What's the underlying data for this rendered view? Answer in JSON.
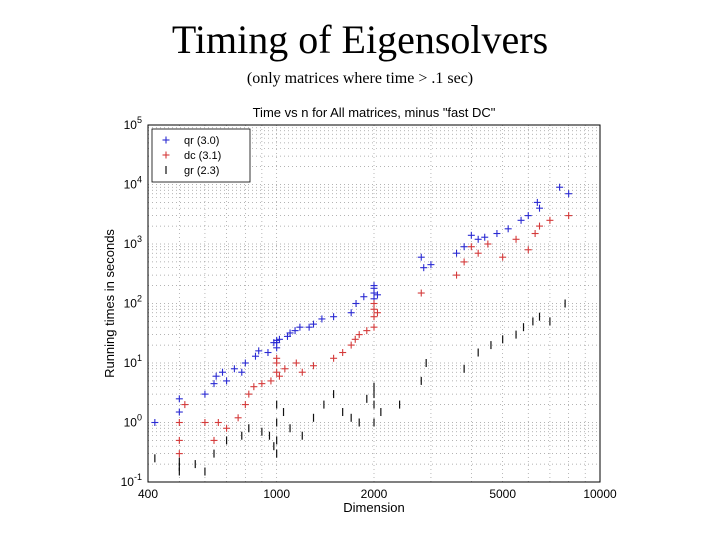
{
  "slide": {
    "title": "Timing of Eigensolvers",
    "subtitle": "(only matrices where time > .1 sec)"
  },
  "chart_data": {
    "type": "scatter",
    "title": "Time vs n for All matrices, minus \"fast DC\"",
    "xlabel": "Dimension",
    "ylabel": "Running times in seconds",
    "xscale": "log",
    "yscale": "log",
    "xlim": [
      400,
      10000
    ],
    "ylim": [
      0.1,
      100000
    ],
    "xticks": [
      400,
      1000,
      2000,
      5000,
      10000
    ],
    "xtick_labels": [
      "400",
      "1000",
      "2000",
      "5000",
      "10000"
    ],
    "yticks": [
      0.1,
      1,
      10,
      100,
      1000,
      10000,
      100000
    ],
    "ytick_labels": [
      {
        "base": "10",
        "exp": "-1"
      },
      {
        "base": "10",
        "exp": "0"
      },
      {
        "base": "10",
        "exp": "1"
      },
      {
        "base": "10",
        "exp": "2"
      },
      {
        "base": "10",
        "exp": "3"
      },
      {
        "base": "10",
        "exp": "4"
      },
      {
        "base": "10",
        "exp": "5"
      }
    ],
    "grid": "dotted",
    "legend_position": "top-left",
    "series": [
      {
        "name": "qr (3.0)",
        "color": "#2a2ad2",
        "marker": "plus",
        "points": [
          [
            420,
            1.0
          ],
          [
            500,
            1.5
          ],
          [
            500,
            2.5
          ],
          [
            600,
            3.0
          ],
          [
            640,
            4.5
          ],
          [
            650,
            6.0
          ],
          [
            680,
            7.0
          ],
          [
            700,
            5.0
          ],
          [
            740,
            8.0
          ],
          [
            780,
            7.0
          ],
          [
            800,
            10.0
          ],
          [
            860,
            13.0
          ],
          [
            880,
            16.0
          ],
          [
            940,
            15.0
          ],
          [
            980,
            22.0
          ],
          [
            1000,
            22.0
          ],
          [
            1000,
            18.0
          ],
          [
            1000,
            24.0
          ],
          [
            1020,
            25.0
          ],
          [
            1080,
            28.0
          ],
          [
            1100,
            32.0
          ],
          [
            1140,
            35.0
          ],
          [
            1180,
            40.0
          ],
          [
            1260,
            40.0
          ],
          [
            1300,
            45.0
          ],
          [
            1380,
            55.0
          ],
          [
            1500,
            60.0
          ],
          [
            1700,
            70.0
          ],
          [
            1760,
            100.0
          ],
          [
            1860,
            130.0
          ],
          [
            2000,
            120.0
          ],
          [
            2000,
            150.0
          ],
          [
            2000,
            180.0
          ],
          [
            2000,
            200.0
          ],
          [
            2050,
            140.0
          ],
          [
            2800,
            600.0
          ],
          [
            2850,
            400.0
          ],
          [
            3000,
            450.0
          ],
          [
            3600,
            700.0
          ],
          [
            3800,
            900.0
          ],
          [
            4000,
            1400.0
          ],
          [
            4200,
            1200.0
          ],
          [
            4400,
            1300.0
          ],
          [
            4800,
            1500.0
          ],
          [
            5200,
            1800.0
          ],
          [
            5700,
            2500.0
          ],
          [
            6000,
            3000.0
          ],
          [
            6400,
            5000.0
          ],
          [
            6500,
            4000.0
          ],
          [
            7500,
            9000.0
          ],
          [
            8000,
            7000.0
          ]
        ]
      },
      {
        "name": "dc (3.1)",
        "color": "#d43a3a",
        "marker": "plus",
        "points": [
          [
            500,
            0.3
          ],
          [
            500,
            0.5
          ],
          [
            500,
            1.0
          ],
          [
            520,
            2.0
          ],
          [
            600,
            1.0
          ],
          [
            640,
            0.5
          ],
          [
            660,
            1.0
          ],
          [
            700,
            0.8
          ],
          [
            760,
            1.2
          ],
          [
            800,
            2.0
          ],
          [
            820,
            3.0
          ],
          [
            850,
            4.0
          ],
          [
            900,
            4.5
          ],
          [
            960,
            5.0
          ],
          [
            1000,
            7.0
          ],
          [
            1000,
            10.0
          ],
          [
            1000,
            12.0
          ],
          [
            1020,
            6.0
          ],
          [
            1060,
            8.0
          ],
          [
            1150,
            10.0
          ],
          [
            1200,
            7.0
          ],
          [
            1300,
            9.0
          ],
          [
            1500,
            12.0
          ],
          [
            1600,
            15.0
          ],
          [
            1700,
            20.0
          ],
          [
            1750,
            25.0
          ],
          [
            1800,
            30.0
          ],
          [
            1900,
            35.0
          ],
          [
            2000,
            40.0
          ],
          [
            2000,
            60.0
          ],
          [
            2000,
            80.0
          ],
          [
            2000,
            100.0
          ],
          [
            2050,
            70.0
          ],
          [
            2800,
            150.0
          ],
          [
            3600,
            300.0
          ],
          [
            3800,
            500.0
          ],
          [
            4000,
            900.0
          ],
          [
            4200,
            700.0
          ],
          [
            4500,
            1000.0
          ],
          [
            5000,
            600.0
          ],
          [
            5500,
            1200.0
          ],
          [
            6000,
            800.0
          ],
          [
            6300,
            1500.0
          ],
          [
            6500,
            2000.0
          ],
          [
            7000,
            2500.0
          ],
          [
            8000,
            3000.0
          ]
        ]
      },
      {
        "name": "gr (2.3)",
        "color": "#111111",
        "marker": "bar",
        "points": [
          [
            420,
            0.25
          ],
          [
            500,
            0.18
          ],
          [
            500,
            0.22
          ],
          [
            500,
            0.15
          ],
          [
            560,
            0.2
          ],
          [
            600,
            0.15
          ],
          [
            640,
            0.3
          ],
          [
            700,
            0.5
          ],
          [
            780,
            0.6
          ],
          [
            820,
            0.8
          ],
          [
            900,
            0.7
          ],
          [
            950,
            0.6
          ],
          [
            980,
            0.4
          ],
          [
            1000,
            0.3
          ],
          [
            1000,
            0.5
          ],
          [
            1000,
            1.0
          ],
          [
            1000,
            2.0
          ],
          [
            1050,
            1.5
          ],
          [
            1100,
            0.8
          ],
          [
            1200,
            0.6
          ],
          [
            1300,
            1.2
          ],
          [
            1400,
            2.0
          ],
          [
            1500,
            3.0
          ],
          [
            1600,
            1.5
          ],
          [
            1700,
            1.2
          ],
          [
            1800,
            1.0
          ],
          [
            1900,
            2.5
          ],
          [
            2000,
            1.0
          ],
          [
            2000,
            2.0
          ],
          [
            2000,
            3.0
          ],
          [
            2000,
            4.0
          ],
          [
            2100,
            1.5
          ],
          [
            2400,
            2.0
          ],
          [
            2800,
            5.0
          ],
          [
            2900,
            10.0
          ],
          [
            3800,
            8.0
          ],
          [
            4200,
            15.0
          ],
          [
            4600,
            20.0
          ],
          [
            5000,
            25.0
          ],
          [
            5500,
            30.0
          ],
          [
            5800,
            40.0
          ],
          [
            6200,
            50.0
          ],
          [
            6500,
            60.0
          ],
          [
            7000,
            50.0
          ],
          [
            7800,
            100.0
          ]
        ]
      }
    ]
  }
}
